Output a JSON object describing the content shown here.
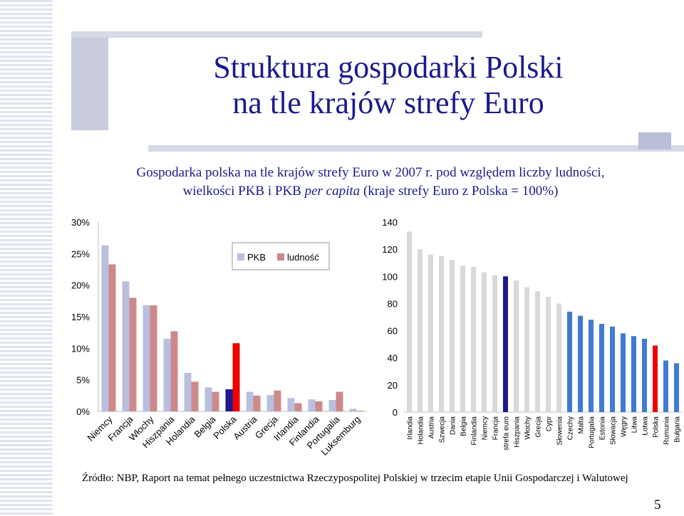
{
  "header": {
    "title_line1": "Struktura gospodarki Polski",
    "title_line2": "na tle krajów strefy Euro"
  },
  "subtitle": {
    "line1": "Gospodarka polska na tle krajów strefy Euro w 2007 r. pod względem liczby ludności,",
    "line2_a": "wielkości PKB i PKB ",
    "line2_italic": "per capita",
    "line2_b": " (kraje strefy Euro z Polska = 100%)"
  },
  "footer": {
    "source": "Źródło: NBP, Raport na temat pełnego uczestnictwa Rzeczypospolitej Polskiej w trzecim etapie Unii Gospodarczej i Walutowej",
    "page_number": "5"
  },
  "colors": {
    "pkb": "#b9bfdd",
    "ludnosc": "#cc8a8a",
    "highlight_red": "#ee0000",
    "highlight_navy": "#1a1a8c",
    "bar_gray": "#d9d9d9",
    "bar_blue": "#3f7bd2"
  },
  "chart_data": [
    {
      "type": "bar",
      "categories": [
        "Niemcy",
        "Francja",
        "Włochy",
        "Hiszpania",
        "Holandia",
        "Belgia",
        "Polska",
        "Austria",
        "Grecja",
        "Irlandia",
        "Finlandia",
        "Portugalia",
        "Luksemburg"
      ],
      "series": [
        {
          "name": "PKB",
          "values": [
            26.3,
            20.6,
            16.8,
            11.5,
            6.1,
            3.8,
            3.5,
            3.1,
            2.6,
            2.1,
            1.9,
            1.8,
            0.4
          ]
        },
        {
          "name": "ludność",
          "values": [
            23.3,
            18.0,
            16.8,
            12.7,
            4.7,
            3.1,
            10.8,
            2.5,
            3.3,
            1.3,
            1.6,
            3.1,
            0.1
          ]
        }
      ],
      "highlight": {
        "category": "Polska",
        "PKB_color": "highlight_navy",
        "ludnosc_color": "highlight_red"
      },
      "ylim": [
        0,
        30
      ],
      "yticks": [
        "0%",
        "5%",
        "10%",
        "15%",
        "20%",
        "25%",
        "30%"
      ],
      "legend": {
        "position": "top-center",
        "labels": [
          "PKB",
          "ludność"
        ]
      },
      "grid": false
    },
    {
      "type": "bar",
      "categories": [
        "Irlandia",
        "Holandia",
        "Austria",
        "Szwecja",
        "Dania",
        "Belgia",
        "Finlandia",
        "Niemcy",
        "Francja",
        "strefa euro",
        "Hiszpania",
        "Włochy",
        "Grecja",
        "Cypr",
        "Słowenia",
        "Czechy",
        "Malta",
        "Portugalia",
        "Estonia",
        "Słowacja",
        "Węgry",
        "Litwa",
        "Łotwa",
        "Polska",
        "Rumunia",
        "Bułgaria"
      ],
      "values": [
        133,
        120,
        116,
        115,
        112,
        108,
        107,
        103,
        101,
        100,
        97,
        92,
        89,
        85,
        80,
        74,
        71,
        68,
        65,
        63,
        58,
        56,
        54,
        49,
        38,
        36
      ],
      "colors": [
        "gray",
        "gray",
        "gray",
        "gray",
        "gray",
        "gray",
        "gray",
        "gray",
        "gray",
        "navy",
        "gray",
        "gray",
        "gray",
        "gray",
        "gray",
        "blue",
        "blue",
        "blue",
        "blue",
        "blue",
        "blue",
        "blue",
        "blue",
        "red",
        "blue",
        "blue"
      ],
      "ylim": [
        0,
        140
      ],
      "yticks": [
        "0",
        "20",
        "40",
        "60",
        "80",
        "100",
        "120",
        "140"
      ],
      "grid": false
    }
  ]
}
